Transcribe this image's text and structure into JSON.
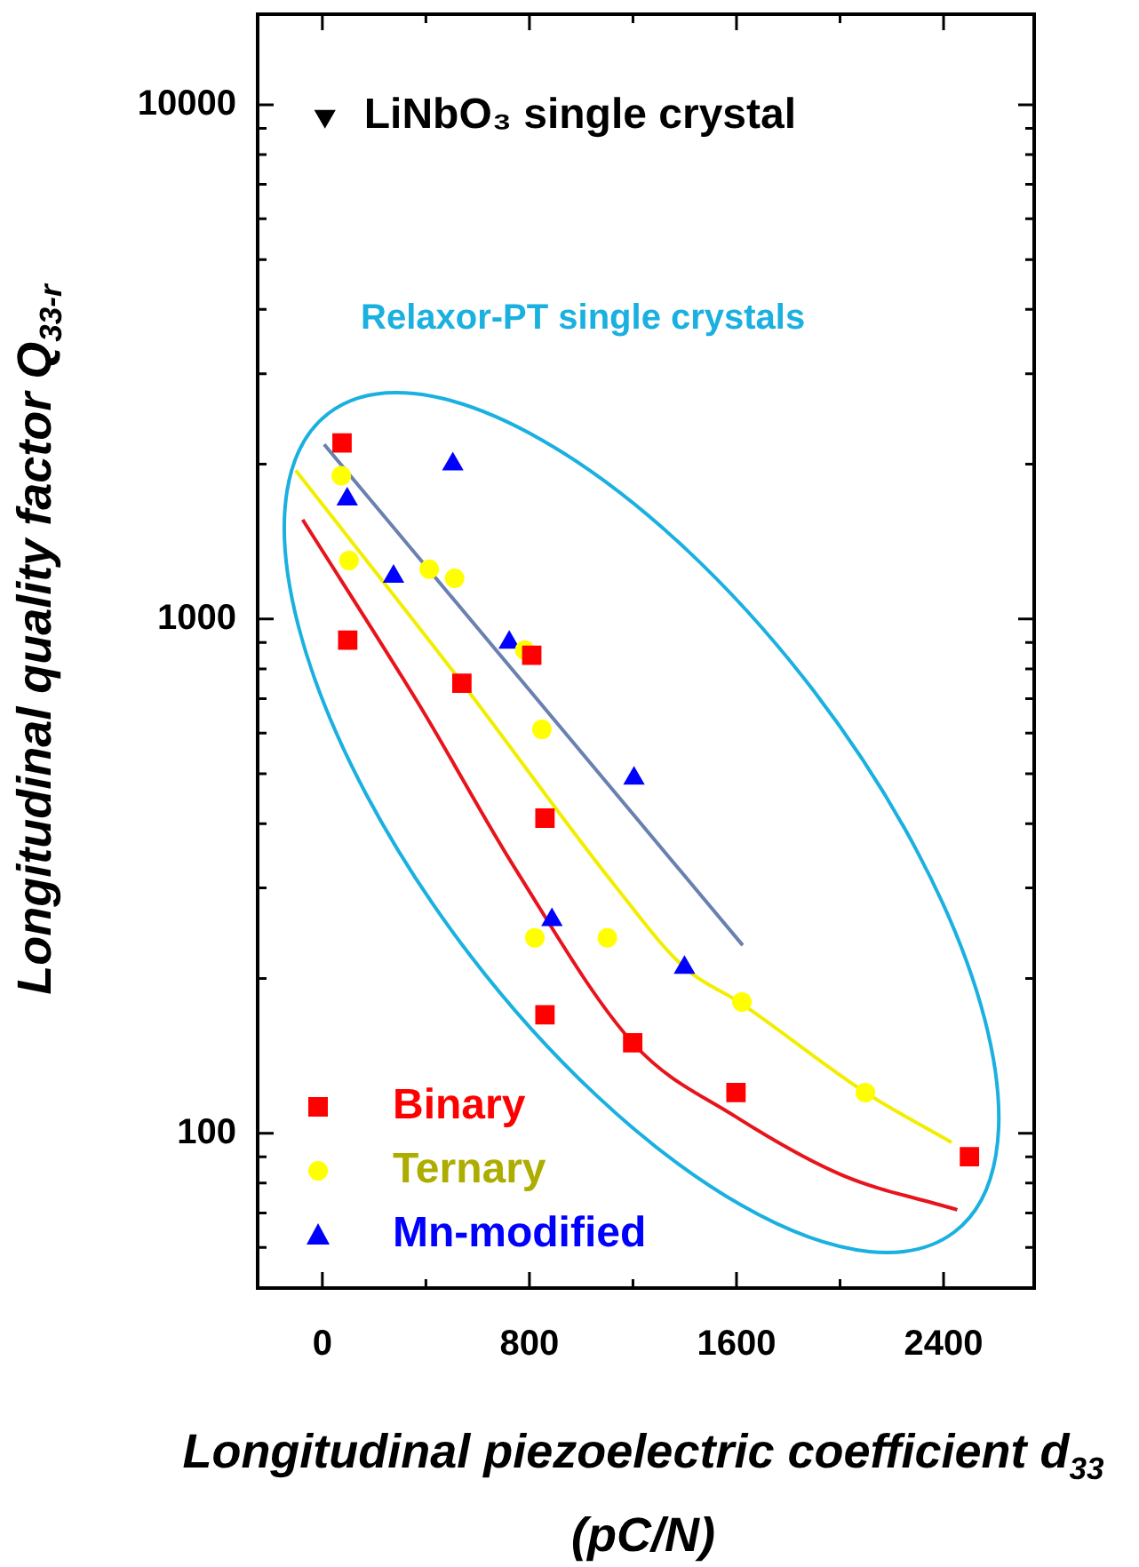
{
  "chart_data": {
    "type": "scatter",
    "xlabel": "Longitudinal piezoelectric coefficient d$_{33}$ (pC/N)",
    "ylabel": "Longitudinal quality factor Q$_{33-r}$",
    "annotations": [
      "Relaxor-PT single crystals",
      {
        "text": "LiNbO₃ single crystal",
        "x": 10,
        "y": 9500
      }
    ],
    "series": [
      {
        "type": "line",
        "color": "#e8141c",
        "marker": "none",
        "x": [
          -76,
          378,
          745,
          1204,
          1593,
          2006,
          2453
        ],
        "values": [
          1560,
          676,
          327,
          149,
          108,
          83,
          71
        ]
      },
      {
        "type": "line",
        "color": "#f2ee00",
        "marker": "none",
        "x": [
          -103,
          539,
          1135,
          1399,
          1617,
          2098,
          2431
        ],
        "values": [
          1945,
          752,
          301,
          210,
          179,
          120,
          96
        ]
      },
      {
        "type": "line",
        "color": "#6a80b0",
        "marker": "none",
        "x": [
          7,
          1624
        ],
        "values": [
          2185,
          232
        ]
      },
      {
        "name": "Binary",
        "type": "scatter",
        "marker": "square",
        "color": "#ff0000",
        "x": [
          76,
          98,
          539,
          809,
          860,
          860,
          1199,
          1598,
          2500
        ],
        "values": [
          2200,
          910,
          750,
          850,
          410,
          170,
          150,
          120,
          90
        ]
      },
      {
        "name": "Ternary",
        "type": "scatter",
        "marker": "circle",
        "color": "#ffff00",
        "x": [
          73,
          103,
          413,
          511,
          782,
          848,
          821,
          1101,
          1621,
          2098
        ],
        "values": [
          1900,
          1300,
          1250,
          1200,
          870,
          610,
          240,
          240,
          180,
          120
        ]
      },
      {
        "name": "Mn-modified",
        "type": "scatter",
        "marker": "triangle",
        "color": "#0000ff",
        "x": [
          96,
          504,
          275,
          722,
          1204,
          887,
          1399
        ],
        "values": [
          1710,
          2000,
          1210,
          900,
          490,
          260,
          210
        ]
      },
      {
        "type": "scatter",
        "marker": "triangle_down",
        "color": "#000000",
        "x": [
          10
        ],
        "values": [
          9500
        ]
      }
    ],
    "xlim": [
      -250,
      2750
    ],
    "xticks": [
      0,
      {
        "value": 400,
        "label": null
      },
      800,
      {
        "value": 1200,
        "label": null
      },
      1600,
      {
        "value": 2000,
        "label": null
      },
      2400
    ],
    "ylim": [
      50,
      15000
    ],
    "log": "y",
    "yticks": [
      {
        "value": 60,
        "label": null
      },
      {
        "value": 70,
        "label": null
      },
      {
        "value": 80,
        "label": null
      },
      {
        "value": 90,
        "label": null
      },
      100,
      {
        "value": 200,
        "label": null
      },
      {
        "value": 300,
        "label": null
      },
      {
        "value": 400,
        "label": null
      },
      {
        "value": 500,
        "label": null
      },
      {
        "value": 600,
        "label": null
      },
      {
        "value": 700,
        "label": null
      },
      {
        "value": 800,
        "label": null
      },
      {
        "value": 900,
        "label": null
      },
      1000,
      {
        "value": 2000,
        "label": null
      },
      {
        "value": 3000,
        "label": null
      },
      {
        "value": 4000,
        "label": null
      },
      {
        "value": 5000,
        "label": null
      },
      {
        "value": 6000,
        "label": null
      },
      {
        "value": 7000,
        "label": null
      },
      {
        "value": 8000,
        "label": null
      },
      {
        "value": 9000,
        "label": null
      },
      10000
    ],
    "grid": false,
    "legend": "bottom left"
  }
}
